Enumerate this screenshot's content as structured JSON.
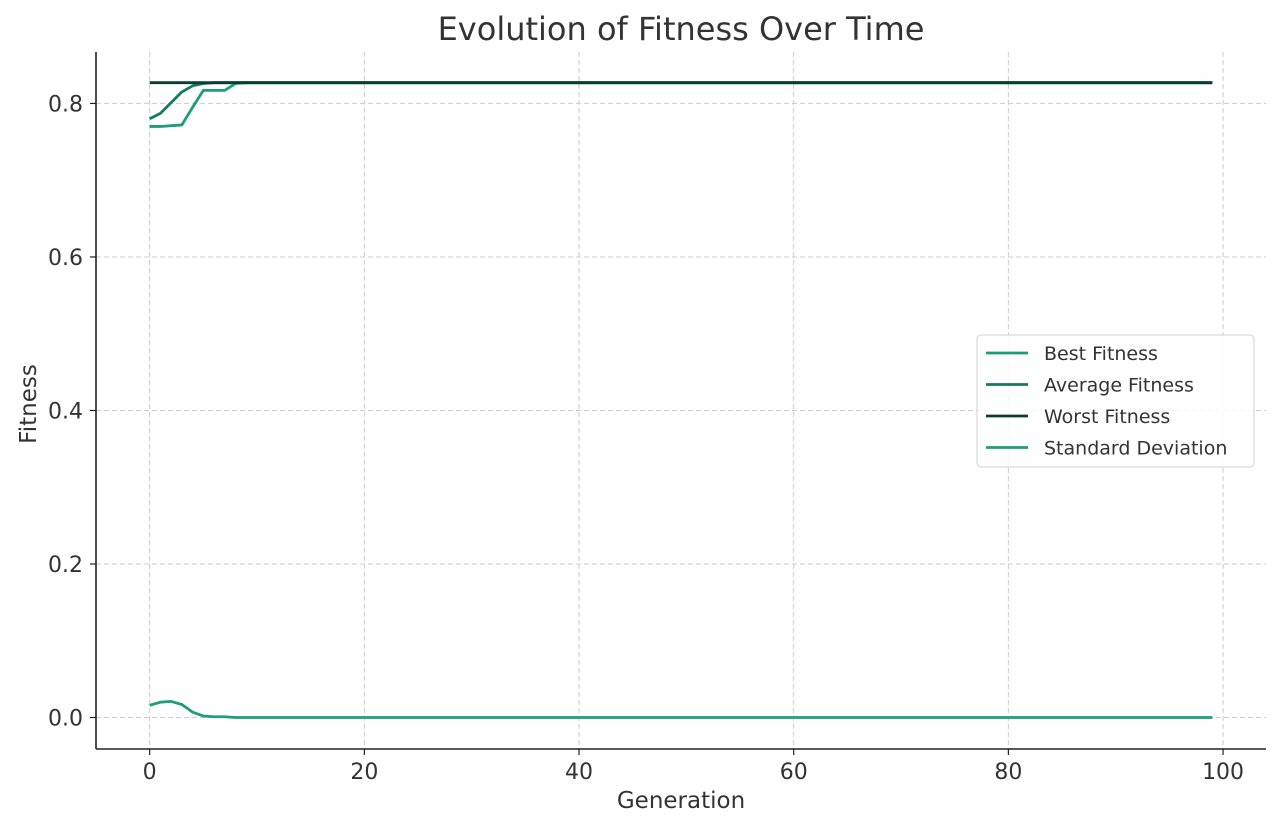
{
  "chart_data": {
    "type": "line",
    "title": "Evolution of Fitness Over Time",
    "xlabel": "Generation",
    "ylabel": "Fitness",
    "xlim": [
      -5,
      104
    ],
    "ylim": [
      -0.041,
      0.867
    ],
    "xticks": [
      0,
      20,
      40,
      60,
      80,
      100
    ],
    "xtick_labels": [
      "0",
      "20",
      "40",
      "60",
      "80",
      "100"
    ],
    "yticks": [
      0.0,
      0.2,
      0.4,
      0.6,
      0.8
    ],
    "ytick_labels": [
      "0.0",
      "0.2",
      "0.4",
      "0.6",
      "0.8"
    ],
    "grid": true,
    "legend_position": "center-right",
    "series": [
      {
        "name": "Best Fitness",
        "color": "#1b9e77",
        "x": [
          0,
          1,
          2,
          3,
          4,
          5,
          6,
          7,
          8,
          9,
          99
        ],
        "y": [
          0.77,
          0.77,
          0.771,
          0.772,
          0.795,
          0.817,
          0.817,
          0.817,
          0.826,
          0.827,
          0.827
        ]
      },
      {
        "name": "Average Fitness",
        "color": "#167a5c",
        "x": [
          0,
          1,
          2,
          3,
          4,
          5,
          6,
          99
        ],
        "y": [
          0.78,
          0.787,
          0.801,
          0.815,
          0.823,
          0.826,
          0.827,
          0.827
        ]
      },
      {
        "name": "Worst Fitness",
        "color": "#0b3d2e",
        "x": [
          0,
          99
        ],
        "y": [
          0.827,
          0.827
        ]
      },
      {
        "name": "Standard Deviation",
        "color": "#1f9e7a",
        "x": [
          0,
          1,
          2,
          3,
          4,
          5,
          6,
          7,
          8,
          99
        ],
        "y": [
          0.016,
          0.02,
          0.021,
          0.017,
          0.007,
          0.002,
          0.001,
          0.001,
          0.0,
          0.0
        ]
      }
    ]
  }
}
